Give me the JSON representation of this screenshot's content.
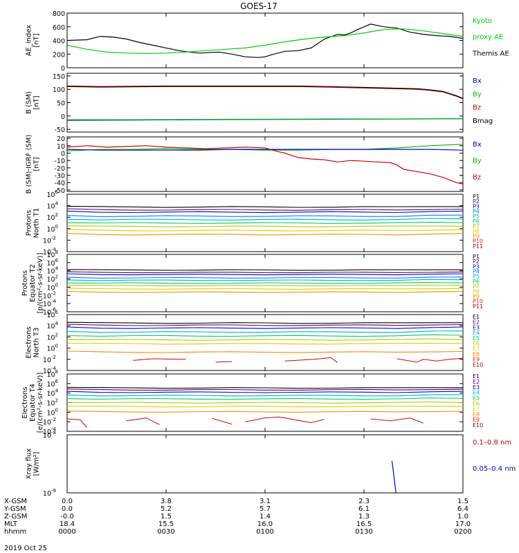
{
  "title": "GOES-17",
  "chart_data": [
    {
      "type": "line",
      "ylabel": [
        "AE_index",
        "[nT]"
      ],
      "yticks": [
        "800",
        "600",
        "400",
        "200",
        "0"
      ],
      "ylim": [
        0,
        800
      ],
      "legend": [
        {
          "text": "Kyoto",
          "color": "#00cc00"
        },
        {
          "text": "proxy AE",
          "color": "#00cc00"
        },
        {
          "text": "Themis AE",
          "color": "#000000"
        }
      ],
      "series": [
        {
          "color": "#000000",
          "x": [
            0,
            6,
            10,
            14,
            18,
            22,
            26,
            30,
            34,
            38,
            40,
            42,
            46,
            50,
            54,
            58,
            60,
            62,
            66,
            70,
            74,
            78,
            82,
            84,
            86,
            88,
            90,
            92,
            94,
            96,
            98,
            100,
            104,
            108,
            112,
            116,
            120
          ],
          "y": [
            400,
            410,
            460,
            450,
            420,
            370,
            330,
            290,
            250,
            225,
            215,
            220,
            230,
            200,
            160,
            150,
            160,
            190,
            240,
            250,
            290,
            420,
            490,
            480,
            510,
            560,
            600,
            640,
            620,
            600,
            590,
            580,
            520,
            490,
            470,
            460,
            430
          ]
        },
        {
          "color": "#00cc00",
          "x": [
            0,
            6,
            12,
            18,
            24,
            30,
            36,
            42,
            48,
            54,
            60,
            66,
            72,
            78,
            84,
            90,
            96,
            102,
            108,
            114,
            120
          ],
          "y": [
            330,
            270,
            230,
            215,
            210,
            215,
            230,
            250,
            270,
            290,
            330,
            380,
            420,
            450,
            470,
            510,
            560,
            570,
            540,
            500,
            460
          ]
        }
      ]
    },
    {
      "type": "line",
      "ylabel": [
        "B (SM)",
        "[nT]"
      ],
      "yticks": [
        "150",
        "100",
        "50",
        "0",
        "-50"
      ],
      "ylim": [
        -60,
        160
      ],
      "legend": [
        {
          "text": "Bx",
          "color": "#0000cc"
        },
        {
          "text": "By",
          "color": "#00bb00"
        },
        {
          "text": "Bz",
          "color": "#cc0000"
        },
        {
          "text": "Bmag",
          "color": "#000000"
        }
      ],
      "series": [
        {
          "color": "#cc0000",
          "x": [
            0,
            10,
            20,
            30,
            40,
            50,
            60,
            70,
            80,
            90,
            100,
            106,
            110,
            114,
            116,
            118,
            120
          ],
          "y": [
            110,
            108,
            109,
            110,
            110,
            110,
            110,
            110,
            108,
            105,
            102,
            100,
            96,
            90,
            82,
            74,
            64
          ]
        },
        {
          "color": "#000000",
          "x": [
            0,
            10,
            20,
            30,
            40,
            50,
            60,
            70,
            80,
            90,
            100,
            106,
            110,
            114,
            116,
            118,
            120
          ],
          "y": [
            112,
            110,
            111,
            112,
            112,
            112,
            112,
            112,
            110,
            107,
            104,
            102,
            98,
            92,
            84,
            76,
            66
          ]
        },
        {
          "color": "#0000cc",
          "x": [
            0,
            20,
            40,
            60,
            80,
            100,
            120
          ],
          "y": [
            -16,
            -15,
            -14,
            -13,
            -12,
            -11,
            -10
          ]
        },
        {
          "color": "#00bb00",
          "x": [
            0,
            20,
            40,
            60,
            80,
            100,
            120
          ],
          "y": [
            -14,
            -14,
            -13,
            -12,
            -11,
            -11,
            -10
          ]
        }
      ]
    },
    {
      "type": "line",
      "ylabel": [
        "B (SM)-IGRF (SM)",
        "[nT]"
      ],
      "yticks": [
        "20",
        "10",
        "0",
        "-10",
        "-20",
        "-30",
        "-40",
        "-50"
      ],
      "ylim": [
        -52,
        22
      ],
      "legend": [
        {
          "text": "Bx",
          "color": "#0000cc"
        },
        {
          "text": "By",
          "color": "#00bb00"
        },
        {
          "text": "Bz",
          "color": "#cc0000"
        }
      ],
      "series": [
        {
          "color": "#00bb00",
          "x": [
            0,
            10,
            20,
            30,
            40,
            50,
            60,
            70,
            80,
            90,
            100,
            110,
            120
          ],
          "y": [
            3,
            5,
            5,
            6,
            5,
            5,
            4,
            4,
            5,
            5,
            7,
            10,
            12
          ]
        },
        {
          "color": "#0000cc",
          "x": [
            0,
            10,
            20,
            30,
            40,
            50,
            60,
            70,
            80,
            90,
            100,
            110,
            120
          ],
          "y": [
            5,
            4,
            4,
            4,
            4,
            5,
            5,
            5,
            5,
            5,
            5,
            5,
            4
          ]
        },
        {
          "color": "#cc0000",
          "x": [
            0,
            6,
            12,
            18,
            24,
            30,
            36,
            42,
            48,
            54,
            60,
            64,
            66,
            70,
            74,
            78,
            82,
            86,
            90,
            94,
            98,
            100,
            102,
            106,
            110,
            114,
            118,
            120
          ],
          "y": [
            8,
            10,
            8,
            9,
            10,
            8,
            7,
            6,
            7,
            8,
            7,
            2,
            0,
            -6,
            -8,
            -9,
            -12,
            -10,
            -11,
            -12,
            -13,
            -16,
            -22,
            -25,
            -28,
            -33,
            -40,
            -42
          ]
        }
      ]
    },
    {
      "type": "line",
      "ylabel": [
        "Protons",
        "North T1"
      ],
      "yticks": [
        "10^6",
        "10^4",
        "10^2",
        "10^0",
        "10^-2",
        "10^-4"
      ],
      "ylog": true,
      "ylim": [
        -4,
        6
      ],
      "legend": [
        {
          "text": "P1",
          "color": "#000000"
        },
        {
          "text": "P2",
          "color": "#5a005a"
        },
        {
          "text": "P3",
          "color": "#0000cc"
        },
        {
          "text": "P4",
          "color": "#007fff"
        },
        {
          "text": "P5",
          "color": "#00aadd"
        },
        {
          "text": "P6",
          "color": "#00cc66"
        },
        {
          "text": "P7",
          "color": "#aacc00"
        },
        {
          "text": "P8",
          "color": "#ddcc00"
        },
        {
          "text": "P9",
          "color": "#ff8800"
        },
        {
          "text": "P10",
          "color": "#dd2200"
        },
        {
          "text": "P11",
          "color": "#aa0000"
        }
      ],
      "levels": [
        3.9,
        3.4,
        3.0,
        2.3,
        1.7,
        1.1,
        0.5,
        -0.2,
        -0.9
      ]
    },
    {
      "type": "line",
      "ylabel": [
        "Protons",
        "Equator T2",
        "[p/(cm²-s-sr-keV)]"
      ],
      "yticks": [
        "10^8",
        "10^6",
        "10^4",
        "10^2",
        "10^0",
        "10^-2",
        "10^-4",
        "10^-6"
      ],
      "ylog": true,
      "ylim": [
        -6,
        8
      ],
      "legend": [
        {
          "text": "P1",
          "color": "#000000"
        },
        {
          "text": "P2",
          "color": "#5a005a"
        },
        {
          "text": "P3",
          "color": "#0000cc"
        },
        {
          "text": "P4",
          "color": "#007fff"
        },
        {
          "text": "P5",
          "color": "#00aadd"
        },
        {
          "text": "P6",
          "color": "#00cc66"
        },
        {
          "text": "P7",
          "color": "#aacc00"
        },
        {
          "text": "P8",
          "color": "#ddcc00"
        },
        {
          "text": "P9",
          "color": "#ff8800"
        },
        {
          "text": "P10",
          "color": "#dd2200"
        },
        {
          "text": "P11",
          "color": "#aa0000"
        }
      ],
      "levels": [
        4.3,
        3.7,
        3.2,
        2.4,
        1.8,
        1.1,
        0.5,
        -0.3,
        -1.1
      ]
    },
    {
      "type": "line",
      "ylabel": [
        "Electrons",
        "North T3"
      ],
      "yticks": [
        "10^6",
        "10^4",
        "10^2",
        "10^0",
        "10^-2",
        "10^-4"
      ],
      "ylog": true,
      "ylim": [
        -4,
        6
      ],
      "legend": [
        {
          "text": "E1",
          "color": "#000000"
        },
        {
          "text": "E2",
          "color": "#5a005a"
        },
        {
          "text": "E3",
          "color": "#0000cc"
        },
        {
          "text": "E4",
          "color": "#00aadd"
        },
        {
          "text": "E5",
          "color": "#00cc66"
        },
        {
          "text": "E6",
          "color": "#aacc00"
        },
        {
          "text": "E7",
          "color": "#ddcc00"
        },
        {
          "text": "E8",
          "color": "#ff8800"
        },
        {
          "text": "E9",
          "color": "#dd2200"
        },
        {
          "text": "E10",
          "color": "#aa0000"
        }
      ],
      "levels": [
        4.6,
        4.2,
        3.7,
        3.0,
        2.3,
        1.6,
        0.9,
        -0.6
      ],
      "noise": [
        {
          "x": [
            20,
            26,
            36
          ],
          "y": [
            -2.2,
            -1.9,
            -2.0
          ]
        },
        {
          "x": [
            45,
            50
          ],
          "y": [
            -2.5,
            -2.4
          ]
        },
        {
          "x": [
            66,
            75,
            80,
            82
          ],
          "y": [
            -2.3,
            -2.0,
            -1.7,
            -2.6
          ]
        },
        {
          "x": [
            100,
            106,
            108,
            112,
            116,
            120
          ],
          "y": [
            -1.9,
            -2.5,
            -2.0,
            -2.3,
            -2.0,
            -1.8
          ]
        }
      ]
    },
    {
      "type": "line",
      "ylabel": [
        "Electrons",
        "Equator T4",
        "[e/(cm²-s-sr-keV)]"
      ],
      "yticks": [
        "10^8",
        "10^6",
        "10^4",
        "10^2",
        "10^0",
        "10^-2",
        "10^-4"
      ],
      "ylog": true,
      "ylim": [
        -4,
        8
      ],
      "legend": [
        {
          "text": "E1",
          "color": "#000000"
        },
        {
          "text": "E2",
          "color": "#5a005a"
        },
        {
          "text": "E3",
          "color": "#0000cc"
        },
        {
          "text": "E4",
          "color": "#00aadd"
        },
        {
          "text": "E5",
          "color": "#00cc66"
        },
        {
          "text": "E6",
          "color": "#aacc00"
        },
        {
          "text": "E7",
          "color": "#ddcc00"
        },
        {
          "text": "E8",
          "color": "#ff8800"
        },
        {
          "text": "E9",
          "color": "#dd2200"
        },
        {
          "text": "E10",
          "color": "#aa0000"
        }
      ],
      "levels": [
        5.2,
        4.8,
        4.3,
        3.6,
        2.9,
        2.1,
        1.3,
        0.2
      ],
      "noise": [
        {
          "x": [
            0,
            4,
            6
          ],
          "y": [
            -1.4,
            -1.6,
            -3.2
          ]
        },
        {
          "x": [
            18,
            24,
            28
          ],
          "y": [
            -1.8,
            -1.2,
            -2.6
          ]
        },
        {
          "x": [
            44,
            50
          ],
          "y": [
            -1.3,
            -2.5
          ]
        },
        {
          "x": [
            54,
            60,
            64,
            66,
            70,
            74,
            78
          ],
          "y": [
            -2.0,
            -1.2,
            -1.0,
            -1.2,
            -1.7,
            -2.2,
            -1.5
          ]
        },
        {
          "x": [
            92,
            98,
            104,
            108
          ],
          "y": [
            -1.4,
            -1.8,
            -1.2,
            -2.3
          ]
        }
      ]
    },
    {
      "type": "line",
      "ylabel": [
        "Xray flux",
        "[W/m²]"
      ],
      "yticks": [
        "10^-8",
        "10^-9"
      ],
      "ylog": true,
      "ylim": [
        -9,
        -8
      ],
      "legend": [
        {
          "text": "0.1–0.8 nm",
          "color": "#cc0000"
        },
        {
          "text": "0.05–0.4 nm",
          "color": "#0000cc"
        }
      ],
      "series": [
        {
          "color": "#0000cc",
          "x": [
            98.5,
            99.7
          ],
          "y": [
            -8.45,
            -9.0
          ]
        }
      ]
    }
  ],
  "xaxis": {
    "rows": [
      {
        "label": "X-GSM",
        "values": [
          "0.0",
          "3.8",
          "3.1",
          "2.3",
          "1.5"
        ]
      },
      {
        "label": "Y-GSM",
        "values": [
          "0.0",
          "5.2",
          "5.7",
          "6.1",
          "6.4"
        ]
      },
      {
        "label": "Z-GSM",
        "values": [
          "-0.0",
          "1.5",
          "1.4",
          "1.3",
          "1.0"
        ]
      },
      {
        "label": "MLT",
        "values": [
          "18.4",
          "15.5",
          "16.0",
          "16.5",
          "17.0"
        ]
      },
      {
        "label": "hhmm",
        "values": [
          "0000",
          "0030",
          "0100",
          "0130",
          "0200"
        ]
      }
    ],
    "date": "2019 Oct 25",
    "ticks": [
      0,
      30,
      60,
      90,
      120
    ]
  }
}
